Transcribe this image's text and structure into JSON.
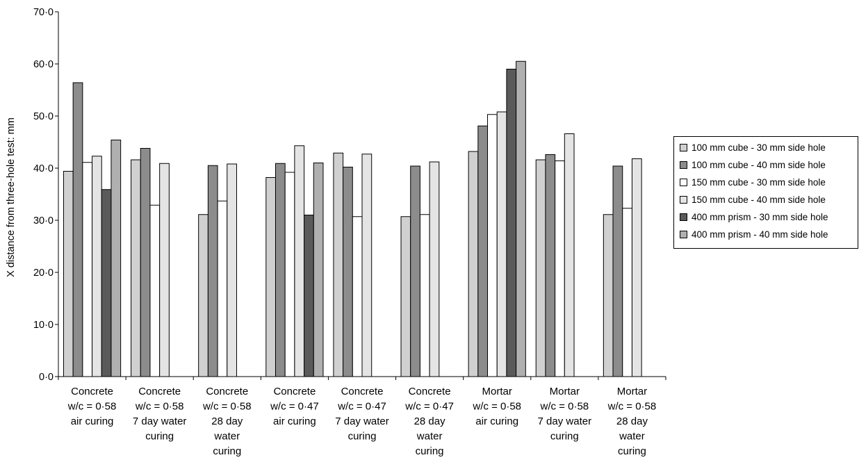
{
  "chart_data": {
    "type": "bar",
    "title": "",
    "xlabel": "",
    "ylabel": "X distance from three-hole test: mm",
    "ylim": [
      0,
      70
    ],
    "yticks": [
      0,
      10,
      20,
      30,
      40,
      50,
      60,
      70
    ],
    "ytick_labels": [
      "0·0",
      "10·0",
      "20·0",
      "30·0",
      "40·0",
      "50·0",
      "60·0",
      "70·0"
    ],
    "grid": false,
    "legend_position": "right",
    "categories": [
      [
        "Concrete",
        "w/c = 0·58",
        "air curing"
      ],
      [
        "Concrete",
        "w/c = 0·58",
        "7 day water",
        "curing"
      ],
      [
        "Concrete",
        "w/c = 0·58",
        "28 day",
        "water",
        "curing"
      ],
      [
        "Concrete",
        "w/c = 0·47",
        "air curing"
      ],
      [
        "Concrete",
        "w/c = 0·47",
        "7 day water",
        "curing"
      ],
      [
        "Concrete",
        "w/c = 0·47",
        "28 day",
        "water",
        "curing"
      ],
      [
        "Mortar",
        "w/c = 0·58",
        "air curing"
      ],
      [
        "Mortar",
        "w/c = 0·58",
        "7 day water",
        "curing"
      ],
      [
        "Mortar",
        "w/c = 0·58",
        "28 day",
        "water",
        "curing"
      ]
    ],
    "series": [
      {
        "name": "100 mm cube - 30 mm side hole",
        "color": "#d0d0d0",
        "values": [
          39.4,
          41.6,
          31.1,
          38.2,
          42.9,
          30.7,
          43.2,
          41.6,
          31.1
        ]
      },
      {
        "name": "100 mm cube - 40 mm side hole",
        "color": "#8c8c8c",
        "values": [
          56.4,
          43.8,
          40.5,
          40.9,
          40.2,
          40.4,
          48.1,
          42.6,
          40.4
        ]
      },
      {
        "name": "150 mm cube - 30 mm side hole",
        "color": "#ffffff",
        "values": [
          41.1,
          32.9,
          33.7,
          39.2,
          30.7,
          31.1,
          50.3,
          41.4,
          32.3
        ]
      },
      {
        "name": "150 mm cube - 40 mm side hole",
        "color": "#e4e4e4",
        "values": [
          42.3,
          40.9,
          40.8,
          44.3,
          42.7,
          41.2,
          50.8,
          46.6,
          41.8
        ]
      },
      {
        "name": "400 mm prism - 30 mm side hole",
        "color": "#5a5a5a",
        "values": [
          35.9,
          null,
          null,
          31.0,
          null,
          null,
          59.0,
          null,
          null
        ]
      },
      {
        "name": "400 mm prism - 40 mm side hole",
        "color": "#b0b0b0",
        "values": [
          45.4,
          null,
          null,
          41.0,
          null,
          null,
          60.5,
          null,
          null
        ]
      }
    ]
  }
}
